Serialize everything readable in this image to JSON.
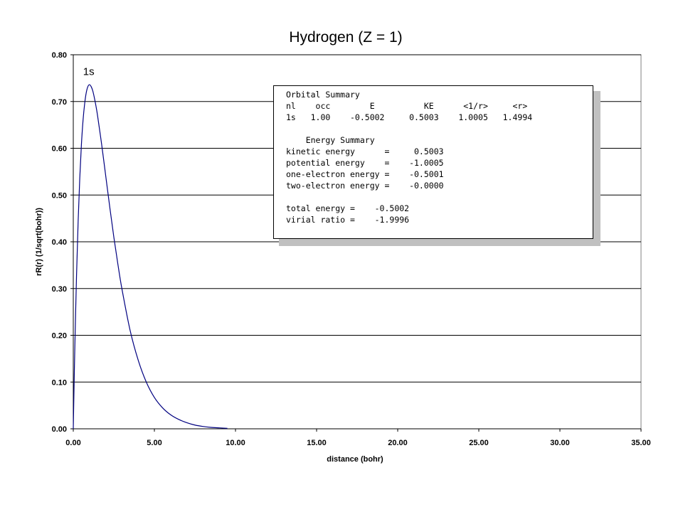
{
  "chart_data": {
    "type": "line",
    "title": "Hydrogen (Z = 1)",
    "xlabel": "distance (bohr)",
    "ylabel": "rR(r) (1/sqrt(bohr))",
    "xlim": [
      0,
      35
    ],
    "ylim": [
      0,
      0.8
    ],
    "x_ticks": [
      "0.00",
      "5.00",
      "10.00",
      "15.00",
      "20.00",
      "25.00",
      "30.00",
      "35.00"
    ],
    "y_ticks": [
      "0.00",
      "0.10",
      "0.20",
      "0.30",
      "0.40",
      "0.50",
      "0.60",
      "0.70",
      "0.80"
    ],
    "grid": "horizontal",
    "series": [
      {
        "name": "1s",
        "color": "#000080",
        "x": [
          0,
          0.05,
          0.1,
          0.2,
          0.3,
          0.4,
          0.5,
          0.6,
          0.7,
          0.8,
          0.9,
          1.0,
          1.1,
          1.2,
          1.3,
          1.4,
          1.5,
          1.75,
          2.0,
          2.25,
          2.5,
          2.75,
          3.0,
          3.5,
          4.0,
          4.5,
          5.0,
          5.5,
          6.0,
          6.5,
          7.0,
          7.5,
          8.0,
          8.5,
          9.0,
          9.5
        ],
        "y": [
          0,
          0.095,
          0.181,
          0.327,
          0.444,
          0.536,
          0.607,
          0.659,
          0.695,
          0.719,
          0.732,
          0.736,
          0.732,
          0.723,
          0.708,
          0.69,
          0.669,
          0.608,
          0.541,
          0.474,
          0.41,
          0.352,
          0.299,
          0.211,
          0.147,
          0.1,
          0.067,
          0.045,
          0.03,
          0.02,
          0.013,
          0.008,
          0.005,
          0.003,
          0.002,
          0.001
        ]
      }
    ],
    "annotations": [
      {
        "text": "1s",
        "x": 0.95,
        "y": 0.76
      }
    ]
  },
  "summary_box": {
    "lines": [
      "Orbital Summary",
      "nl    occ        E          KE      <1/r>     <r>",
      "1s   1.00    -0.5002     0.5003    1.0005   1.4994",
      "",
      "    Energy Summary",
      "kinetic energy      =     0.5003",
      "potential energy    =    -1.0005",
      "one-electron energy =    -0.5001",
      "two-electron energy =    -0.0000",
      "",
      "total energy =    -0.5002",
      "virial ratio =    -1.9996"
    ]
  }
}
